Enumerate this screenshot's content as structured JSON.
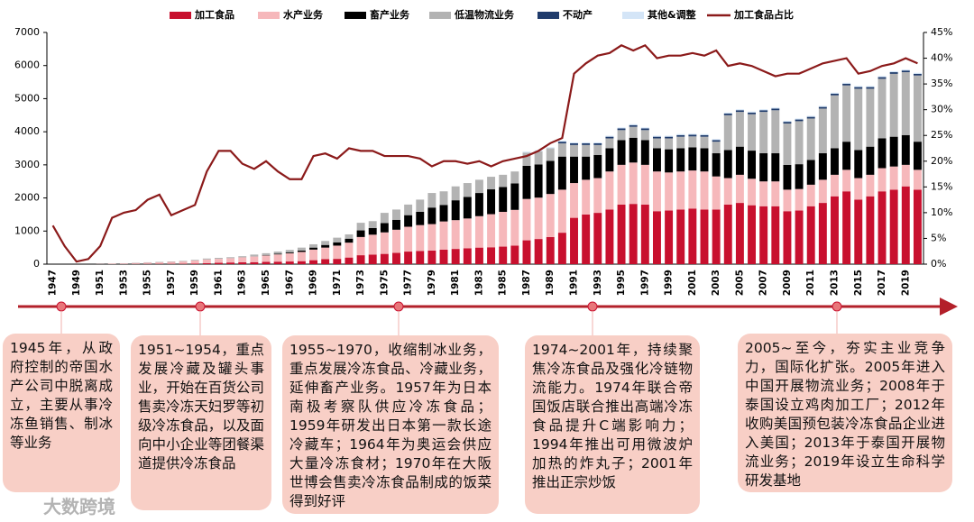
{
  "chart_data": {
    "type": "bar",
    "stacked": true,
    "categories": [
      "1947",
      null,
      "1949",
      null,
      "1951",
      null,
      "1953",
      null,
      "1955",
      null,
      "1957",
      null,
      "1959",
      null,
      "1961",
      null,
      "1963",
      null,
      "1965",
      null,
      "1967",
      null,
      "1969",
      null,
      "1971",
      null,
      "1973",
      null,
      "1975",
      null,
      "1977",
      null,
      "1979",
      null,
      "1981",
      null,
      "1983",
      null,
      "1985",
      null,
      "1987",
      null,
      "1989",
      null,
      "1991",
      null,
      "1993",
      null,
      "1995",
      null,
      "1997",
      null,
      "1999",
      null,
      "2001",
      null,
      "2003",
      null,
      "2005",
      null,
      "2007",
      null,
      "2009",
      null,
      "2011",
      null,
      "2013",
      null,
      "2015",
      null,
      "2017",
      null,
      "2019",
      null
    ],
    "series": [
      {
        "name": "加工食品",
        "color": "#c8102e",
        "values": [
          0,
          0,
          0,
          0,
          1,
          2,
          3,
          5,
          6,
          8,
          8,
          10,
          20,
          30,
          40,
          50,
          55,
          60,
          70,
          75,
          80,
          90,
          120,
          150,
          160,
          200,
          270,
          290,
          310,
          340,
          380,
          400,
          410,
          440,
          460,
          480,
          500,
          510,
          530,
          560,
          720,
          760,
          820,
          950,
          1400,
          1500,
          1550,
          1650,
          1800,
          1820,
          1800,
          1600,
          1620,
          1650,
          1680,
          1650,
          1650,
          1800,
          1850,
          1780,
          1750,
          1750,
          1600,
          1620,
          1750,
          1850,
          2050,
          2200,
          1950,
          2050,
          2200,
          2250,
          2350,
          2250
        ]
      },
      {
        "name": "水产业务",
        "color": "#f6b8bb",
        "values": [
          0,
          0,
          0,
          0,
          4,
          15,
          20,
          30,
          40,
          50,
          60,
          70,
          90,
          110,
          120,
          130,
          150,
          170,
          190,
          220,
          250,
          280,
          320,
          350,
          400,
          450,
          550,
          600,
          650,
          700,
          750,
          780,
          800,
          850,
          870,
          900,
          950,
          1000,
          1050,
          1080,
          1250,
          1250,
          1300,
          1300,
          1050,
          1050,
          1050,
          1150,
          1200,
          1250,
          1200,
          1200,
          1150,
          1150,
          1150,
          1150,
          1000,
          800,
          850,
          800,
          750,
          750,
          650,
          650,
          650,
          700,
          650,
          650,
          650,
          650,
          700,
          700,
          650,
          600
        ]
      },
      {
        "name": "畜产业务",
        "color": "#000000",
        "values": [
          0,
          0,
          0,
          0,
          0,
          0,
          0,
          0,
          0,
          0,
          0,
          0,
          0,
          0,
          0,
          0,
          0,
          0,
          10,
          20,
          30,
          40,
          60,
          80,
          100,
          120,
          200,
          200,
          280,
          300,
          350,
          400,
          500,
          500,
          600,
          650,
          700,
          750,
          750,
          800,
          1000,
          1000,
          1000,
          1000,
          800,
          700,
          700,
          700,
          750,
          750,
          750,
          700,
          700,
          700,
          700,
          700,
          700,
          850,
          850,
          850,
          850,
          850,
          750,
          750,
          750,
          800,
          800,
          850,
          850,
          850,
          900,
          900,
          900,
          850
        ]
      },
      {
        "name": "低温物流业务",
        "color": "#b3b3b3",
        "values": [
          0,
          0,
          0,
          0,
          0,
          3,
          5,
          8,
          10,
          12,
          14,
          18,
          20,
          30,
          30,
          30,
          35,
          60,
          60,
          65,
          70,
          90,
          100,
          120,
          140,
          130,
          230,
          210,
          310,
          310,
          320,
          370,
          440,
          410,
          420,
          420,
          400,
          380,
          370,
          360,
          400,
          400,
          380,
          400,
          350,
          350,
          300,
          300,
          300,
          330,
          300,
          300,
          330,
          350,
          330,
          350,
          350,
          1050,
          1050,
          1100,
          1250,
          1300,
          1250,
          1300,
          1250,
          1350,
          1600,
          1700,
          1850,
          1750,
          1800,
          1900,
          1900,
          2000
        ]
      },
      {
        "name": "不动产",
        "color": "#1f3b6b",
        "values": [
          0,
          0,
          0,
          0,
          0,
          0,
          0,
          0,
          0,
          0,
          0,
          0,
          0,
          0,
          0,
          0,
          0,
          0,
          0,
          0,
          0,
          0,
          0,
          0,
          0,
          0,
          0,
          0,
          0,
          0,
          0,
          0,
          0,
          0,
          0,
          0,
          0,
          0,
          0,
          0,
          0,
          0,
          0,
          50,
          50,
          50,
          50,
          50,
          50,
          50,
          50,
          50,
          50,
          50,
          50,
          50,
          50,
          50,
          50,
          50,
          50,
          50,
          50,
          50,
          50,
          50,
          50,
          50,
          50,
          50,
          50,
          50,
          50,
          50
        ]
      },
      {
        "name": "其他&调整",
        "color": "#d4e5f7",
        "values": [
          0,
          0,
          0,
          0,
          0,
          0,
          0,
          0,
          0,
          0,
          0,
          0,
          0,
          0,
          0,
          0,
          0,
          0,
          0,
          0,
          0,
          0,
          0,
          0,
          0,
          0,
          0,
          0,
          0,
          0,
          0,
          0,
          0,
          0,
          0,
          0,
          0,
          0,
          0,
          0,
          30,
          30,
          30,
          30,
          30,
          30,
          30,
          30,
          30,
          30,
          30,
          30,
          30,
          30,
          30,
          30,
          30,
          30,
          30,
          30,
          30,
          30,
          30,
          30,
          30,
          30,
          30,
          30,
          30,
          30,
          30,
          30,
          30,
          30
        ]
      },
      {
        "name": "加工食品占比",
        "color": "#8b1a1a",
        "type": "line",
        "axis": "y2",
        "values": [
          7.5,
          3.5,
          0.5,
          1,
          3.5,
          9,
          10,
          10.5,
          12.5,
          13.5,
          9.5,
          10.5,
          11.5,
          18,
          22,
          22,
          19.5,
          18.5,
          20,
          18,
          16.5,
          16.5,
          21,
          21.5,
          20.5,
          22.5,
          22,
          22,
          21,
          21,
          21,
          20.5,
          19,
          20,
          20,
          19.5,
          20,
          19,
          20,
          20.5,
          21,
          22,
          23.5,
          24.5,
          37,
          39,
          40.5,
          41,
          42.5,
          41.5,
          42.5,
          40,
          40.5,
          40.5,
          41,
          40.5,
          41.5,
          38.5,
          39,
          38.5,
          37.5,
          36.5,
          37,
          37,
          38,
          39,
          39.5,
          40,
          37,
          37.5,
          38.5,
          39,
          40,
          39
        ]
      }
    ],
    "ylim": [
      0,
      7000
    ],
    "yticks": [
      0,
      1000,
      2000,
      3000,
      4000,
      5000,
      6000,
      7000
    ],
    "y2lim": [
      0,
      45
    ],
    "y2ticks": [
      {
        "value": 0,
        "label": "0%"
      },
      {
        "value": 5,
        "label": "5%"
      },
      {
        "value": 10,
        "label": "10%"
      },
      {
        "value": 15,
        "label": "15%"
      },
      {
        "value": 20,
        "label": "20%"
      },
      {
        "value": 25,
        "label": "25%"
      },
      {
        "value": 30,
        "label": "30%"
      },
      {
        "value": 35,
        "label": "35%"
      },
      {
        "value": 40,
        "label": "40%"
      },
      {
        "value": 45,
        "label": "45%"
      }
    ],
    "legend": "top"
  },
  "timeline": [
    "1945年，从政府控制的帝国水产公司中脱离成立，主要从事冷冻鱼销售、制冰等业务",
    "1951~1954，重点发展冷藏及罐头事业，开始在百货公司售卖冷冻天妇罗等初级冷冻食品，以及面向中小企业等团餐渠道提供冷冻食品",
    "1955~1970，收缩制冰业务，重点发展冷冻食品、冷藏业务，延伸畜产业务。1957年为日本南极考察队供应冷冻食品；1959年研发出日本第一款长途冷藏车；1964年为奥运会供应大量冷冻食材；1970年在大阪世博会售卖冷冻食品制成的饭菜得到好评",
    "1974~2001年，持续聚焦冷冻食品及强化冷链物流能力。1974年联合帝国饭店联合推出高端冷冻食品提升C端影响力；1994年推出可用微波炉加热的炸丸子；2001年推出正宗炒饭",
    "2005~至今，夯实主业竞争力，国际化扩张。2005年进入中国开展物流业务；2008年于泰国设立鸡肉加工厂；2012年收购美国预包装冷冻食品企业进入美国；2013年于泰国开展物流业务；2019年设立生命科学研发基地"
  ],
  "watermark": "大数跨境"
}
